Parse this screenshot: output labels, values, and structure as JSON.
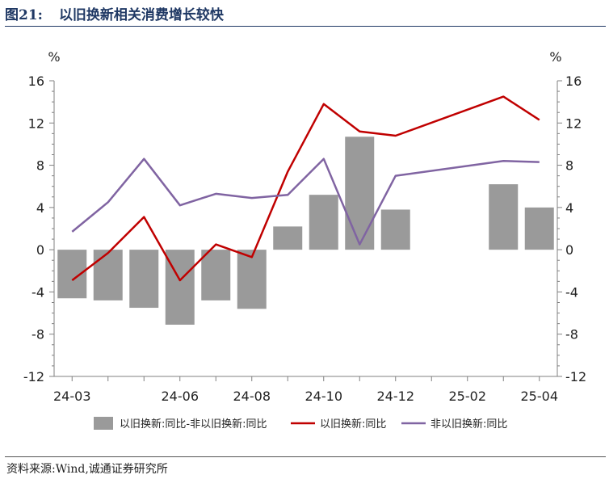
{
  "figure": {
    "number": "图21:",
    "title": "以旧换新相关消费增长较快"
  },
  "source": "资料来源:Wind,诚通证券研究所",
  "chart_data": {
    "type": "bar+line",
    "unit_left": "%",
    "unit_right": "%",
    "ylim": [
      -12,
      16
    ],
    "yticks": [
      -12,
      -8,
      -4,
      0,
      4,
      8,
      12,
      16
    ],
    "y2lim": [
      -12,
      16
    ],
    "y2ticks": [
      -12,
      -8,
      -4,
      0,
      4,
      8,
      12,
      16
    ],
    "months": [
      "24-03",
      "24-04",
      "24-05",
      "24-06",
      "24-07",
      "24-08",
      "24-09",
      "24-10",
      "24-11",
      "24-12",
      "25-01",
      "25-02",
      "25-03",
      "25-04"
    ],
    "xtick_labels": [
      "24-03",
      "",
      "",
      "24-06",
      "",
      "24-08",
      "",
      "24-10",
      "",
      "24-12",
      "",
      "25-02",
      "",
      "25-04"
    ],
    "legend_position": "bottom",
    "series": [
      {
        "name": "以旧换新:同比-非以旧换新:同比",
        "kind": "bar",
        "color": "#9a9a9a",
        "values": [
          -4.6,
          -4.8,
          -5.5,
          -7.1,
          -4.8,
          -5.6,
          2.2,
          5.2,
          10.7,
          3.8,
          null,
          null,
          6.2,
          4.0
        ]
      },
      {
        "name": "以旧换新:同比",
        "kind": "line",
        "color": "#c00000",
        "values": [
          -2.9,
          -0.3,
          3.1,
          -2.9,
          0.5,
          -0.7,
          7.4,
          13.8,
          11.2,
          10.8,
          null,
          null,
          14.5,
          12.3
        ]
      },
      {
        "name": "非以旧换新:同比",
        "kind": "line",
        "color": "#8064a2",
        "values": [
          1.7,
          4.5,
          8.6,
          4.2,
          5.3,
          4.9,
          5.2,
          8.6,
          0.5,
          7.0,
          null,
          null,
          8.4,
          8.3
        ]
      }
    ]
  }
}
